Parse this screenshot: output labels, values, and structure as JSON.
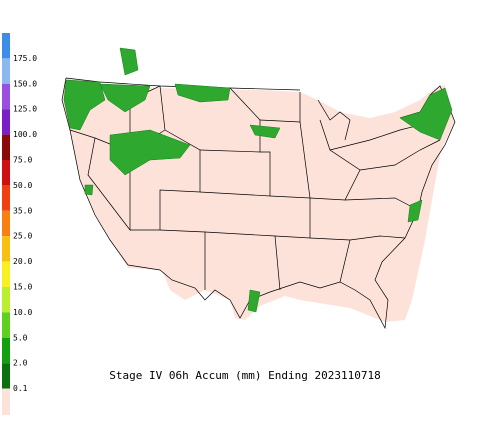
{
  "title": "Stage IV 06h Accum (mm) Ending 2023110718",
  "legend": {
    "items": [
      {
        "label": "175.0",
        "color": "#3c8ce8"
      },
      {
        "label": "150.0",
        "color": "#8cb8f0"
      },
      {
        "label": "125.0",
        "color": "#9b4fe0"
      },
      {
        "label": "100.0",
        "color": "#7a1fc8"
      },
      {
        "label": "75.0",
        "color": "#8a0a0a"
      },
      {
        "label": "50.0",
        "color": "#d01010"
      },
      {
        "label": "35.0",
        "color": "#f04010"
      },
      {
        "label": "25.0",
        "color": "#f88010"
      },
      {
        "label": "20.0",
        "color": "#f8c010"
      },
      {
        "label": "15.0",
        "color": "#f8f020"
      },
      {
        "label": "10.0",
        "color": "#b8f030"
      },
      {
        "label": "5.0",
        "color": "#60d020"
      },
      {
        "label": "2.0",
        "color": "#10a010"
      },
      {
        "label": "0.1",
        "color": "#0a7010"
      }
    ],
    "base_color": "#fde2da"
  }
}
